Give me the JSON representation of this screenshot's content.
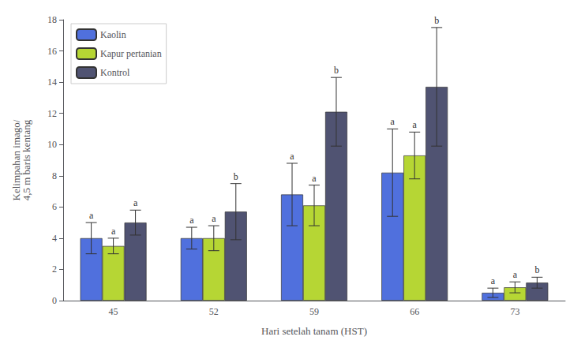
{
  "chart_data": {
    "type": "bar",
    "categories": [
      "45",
      "52",
      "59",
      "66",
      "73"
    ],
    "xlabel": "Hari setelah tanam (HST)",
    "ylabel": "Kelimpahan imago/\n4,5 m baris kentang",
    "ylim": [
      0,
      18
    ],
    "yticks": [
      0,
      2,
      4,
      6,
      8,
      10,
      12,
      14,
      16,
      18
    ],
    "grid": false,
    "legend": "upper left",
    "series": [
      {
        "name": "Kaolin",
        "values": [
          4.0,
          4.0,
          6.8,
          8.2,
          0.5
        ],
        "errors": [
          1.0,
          0.7,
          2.0,
          2.8,
          0.3
        ],
        "labels": [
          "a",
          "a",
          "a",
          "a",
          "a"
        ]
      },
      {
        "name": "Kapur pertanian",
        "values": [
          3.5,
          4.0,
          6.1,
          9.3,
          0.85
        ],
        "errors": [
          0.5,
          0.8,
          1.3,
          1.5,
          0.35
        ],
        "labels": [
          "a",
          "a",
          "a",
          "a",
          "a"
        ]
      },
      {
        "name": "Kontrol",
        "values": [
          5.0,
          5.7,
          12.1,
          13.7,
          1.15
        ],
        "errors": [
          0.8,
          1.8,
          2.2,
          3.8,
          0.35
        ],
        "labels": [
          "a",
          "b",
          "b",
          "b",
          "b"
        ]
      }
    ]
  }
}
